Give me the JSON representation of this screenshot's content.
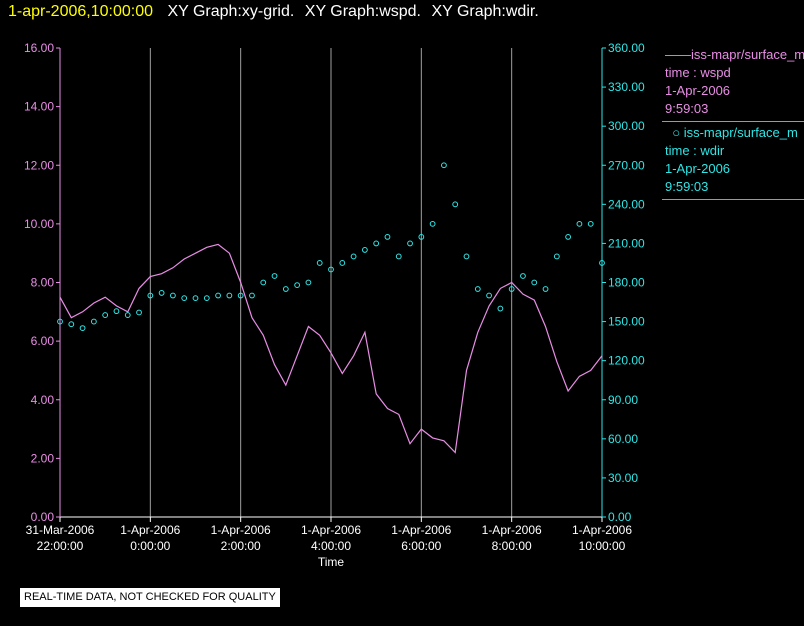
{
  "header": {
    "timestamp": "1-apr-2006,10:00:00",
    "titles": [
      "XY Graph:xy-grid.",
      "XY Graph:wspd.",
      "XY Graph:wdir."
    ]
  },
  "legend": {
    "items": [
      {
        "name": "iss-mapr/surface_m",
        "lines": [
          "time : wspd",
          "1-Apr-2006",
          "9:59:03"
        ],
        "color": "#e98de6",
        "marker": "line"
      },
      {
        "name": "iss-mapr/surface_m",
        "lines": [
          "time : wdir",
          "1-Apr-2006",
          "9:59:03"
        ],
        "color": "#2ee6e6",
        "marker": "circle"
      }
    ]
  },
  "footer": {
    "quality_note": "REAL-TIME DATA, NOT CHECKED FOR QUALITY"
  },
  "chart_data": {
    "type": "line",
    "background": "#000000",
    "grid": "vertical",
    "grid_color": "#a0a0a0",
    "xlabel": "Time",
    "x_ticks": [
      {
        "line1": "31-Mar-2006",
        "line2": "22:00:00"
      },
      {
        "line1": "1-Apr-2006",
        "line2": "0:00:00"
      },
      {
        "line1": "1-Apr-2006",
        "line2": "2:00:00"
      },
      {
        "line1": "1-Apr-2006",
        "line2": "4:00:00"
      },
      {
        "line1": "1-Apr-2006",
        "line2": "6:00:00"
      },
      {
        "line1": "1-Apr-2006",
        "line2": "8:00:00"
      },
      {
        "line1": "1-Apr-2006",
        "line2": "10:00:00"
      }
    ],
    "x_tick_hours": [
      -2,
      0,
      2,
      4,
      6,
      8,
      10
    ],
    "xlim_hours": [
      -2,
      10
    ],
    "y_left": {
      "ylim": [
        0,
        16
      ],
      "ticks": [
        "0.00",
        "2.00",
        "4.00",
        "6.00",
        "8.00",
        "10.00",
        "12.00",
        "14.00",
        "16.00"
      ],
      "color": "#e98de6"
    },
    "y_right": {
      "ylim": [
        0,
        360
      ],
      "ticks": [
        "0.00",
        "30.00",
        "60.00",
        "90.00",
        "120.00",
        "150.00",
        "180.00",
        "210.00",
        "240.00",
        "270.00",
        "300.00",
        "330.00",
        "360.00"
      ],
      "color": "#2ee6e6"
    },
    "series": [
      {
        "axis": "left",
        "style": "line",
        "color": "#e98de6",
        "x_hours": [
          -2.0,
          -1.75,
          -1.5,
          -1.25,
          -1.0,
          -0.75,
          -0.5,
          -0.25,
          0.0,
          0.25,
          0.5,
          0.75,
          1.0,
          1.25,
          1.5,
          1.75,
          2.0,
          2.25,
          2.5,
          2.75,
          3.0,
          3.25,
          3.5,
          3.75,
          4.0,
          4.25,
          4.5,
          4.75,
          5.0,
          5.25,
          5.5,
          5.75,
          6.0,
          6.25,
          6.5,
          6.75,
          7.0,
          7.25,
          7.5,
          7.75,
          8.0,
          8.25,
          8.5,
          8.75,
          9.0,
          9.25,
          9.5,
          9.75,
          10.0
        ],
        "values": [
          7.5,
          6.8,
          7.0,
          7.3,
          7.5,
          7.2,
          7.0,
          7.8,
          8.2,
          8.3,
          8.5,
          8.8,
          9.0,
          9.2,
          9.3,
          9.0,
          8.0,
          6.8,
          6.2,
          5.2,
          4.5,
          5.5,
          6.5,
          6.2,
          5.6,
          4.9,
          5.5,
          6.3,
          4.2,
          3.7,
          3.5,
          2.5,
          3.0,
          2.7,
          2.6,
          2.2,
          5.0,
          6.3,
          7.2,
          7.8,
          8.0,
          7.6,
          7.4,
          6.5,
          5.3,
          4.3,
          4.8,
          5.0,
          5.5
        ]
      },
      {
        "axis": "right",
        "style": "scatter",
        "marker": "circle",
        "color": "#2ee6e6",
        "x_hours": [
          -2.0,
          -1.75,
          -1.5,
          -1.25,
          -1.0,
          -0.75,
          -0.5,
          -0.25,
          0.0,
          0.25,
          0.5,
          0.75,
          1.0,
          1.25,
          1.5,
          1.75,
          2.0,
          2.25,
          2.5,
          2.75,
          3.0,
          3.25,
          3.5,
          3.75,
          4.0,
          4.25,
          4.5,
          4.75,
          5.0,
          5.25,
          5.5,
          5.75,
          6.0,
          6.25,
          6.5,
          6.75,
          7.0,
          7.25,
          7.5,
          7.75,
          8.0,
          8.25,
          8.5,
          8.75,
          9.0,
          9.25,
          9.5,
          9.75,
          10.0
        ],
        "values": [
          150,
          148,
          145,
          150,
          155,
          158,
          155,
          157,
          170,
          172,
          170,
          168,
          168,
          168,
          170,
          170,
          170,
          170,
          180,
          185,
          175,
          178,
          180,
          195,
          190,
          195,
          200,
          205,
          210,
          215,
          200,
          210,
          215,
          225,
          270,
          240,
          200,
          175,
          170,
          160,
          175,
          185,
          180,
          175,
          200,
          215,
          225,
          225,
          195
        ]
      }
    ]
  }
}
